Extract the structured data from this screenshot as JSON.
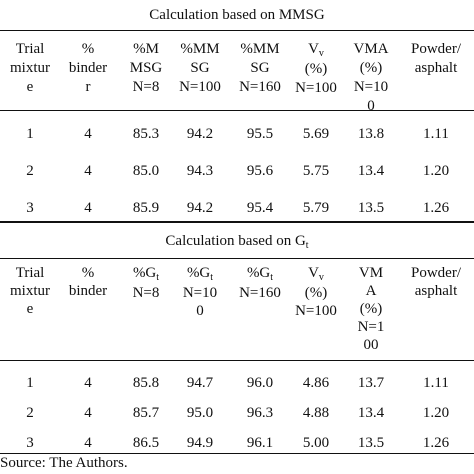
{
  "section1": {
    "caption": "Calculation based on MMSG",
    "headers": [
      {
        "lines": [
          "Trial",
          "mixtur",
          "e"
        ]
      },
      {
        "lines": [
          "%",
          "binder",
          "r"
        ]
      },
      {
        "lines": [
          "%M",
          "MSG",
          "N=8"
        ]
      },
      {
        "lines": [
          "%MM",
          "SG",
          "N=100"
        ]
      },
      {
        "lines": [
          "%MM",
          "SG",
          "N=160"
        ]
      },
      {
        "lines": [
          "V",
          "(%)",
          "N=100"
        ],
        "sub": "v"
      },
      {
        "lines": [
          "VMA",
          "(%)",
          "N=10",
          "0"
        ]
      },
      {
        "lines": [
          "Powder/",
          "asphalt"
        ]
      }
    ],
    "rows": [
      [
        "1",
        "4",
        "85.3",
        "94.2",
        "95.5",
        "5.69",
        "13.8",
        "1.11"
      ],
      [
        "2",
        "4",
        "85.0",
        "94.3",
        "95.6",
        "5.75",
        "13.4",
        "1.20"
      ],
      [
        "3",
        "4",
        "85.9",
        "94.2",
        "95.4",
        "5.79",
        "13.5",
        "1.26"
      ]
    ]
  },
  "section2": {
    "caption": "Calculation based on G",
    "caption_sub": "t",
    "headers": [
      {
        "lines": [
          "Trial",
          "mixtur",
          "e"
        ]
      },
      {
        "lines": [
          "%",
          "binder"
        ]
      },
      {
        "lines": [
          "%G",
          "N=8"
        ],
        "sub": "t"
      },
      {
        "lines": [
          "%G",
          "N=10",
          "0"
        ],
        "sub": "t"
      },
      {
        "lines": [
          "%G",
          "N=160"
        ],
        "sub": "t"
      },
      {
        "lines": [
          "V",
          "(%)",
          "N=100"
        ],
        "sub": "v"
      },
      {
        "lines": [
          "VM",
          "A",
          "(%)",
          "N=1",
          "00"
        ]
      },
      {
        "lines": [
          "Powder/",
          "asphalt"
        ]
      }
    ],
    "rows": [
      [
        "1",
        "4",
        "85.8",
        "94.7",
        "96.0",
        "4.86",
        "13.7",
        "1.11"
      ],
      [
        "2",
        "4",
        "85.7",
        "95.0",
        "96.3",
        "4.88",
        "13.4",
        "1.20"
      ],
      [
        "3",
        "4",
        "86.5",
        "94.9",
        "96.1",
        "5.00",
        "13.5",
        "1.26"
      ]
    ]
  },
  "source": "Source: The Authors."
}
